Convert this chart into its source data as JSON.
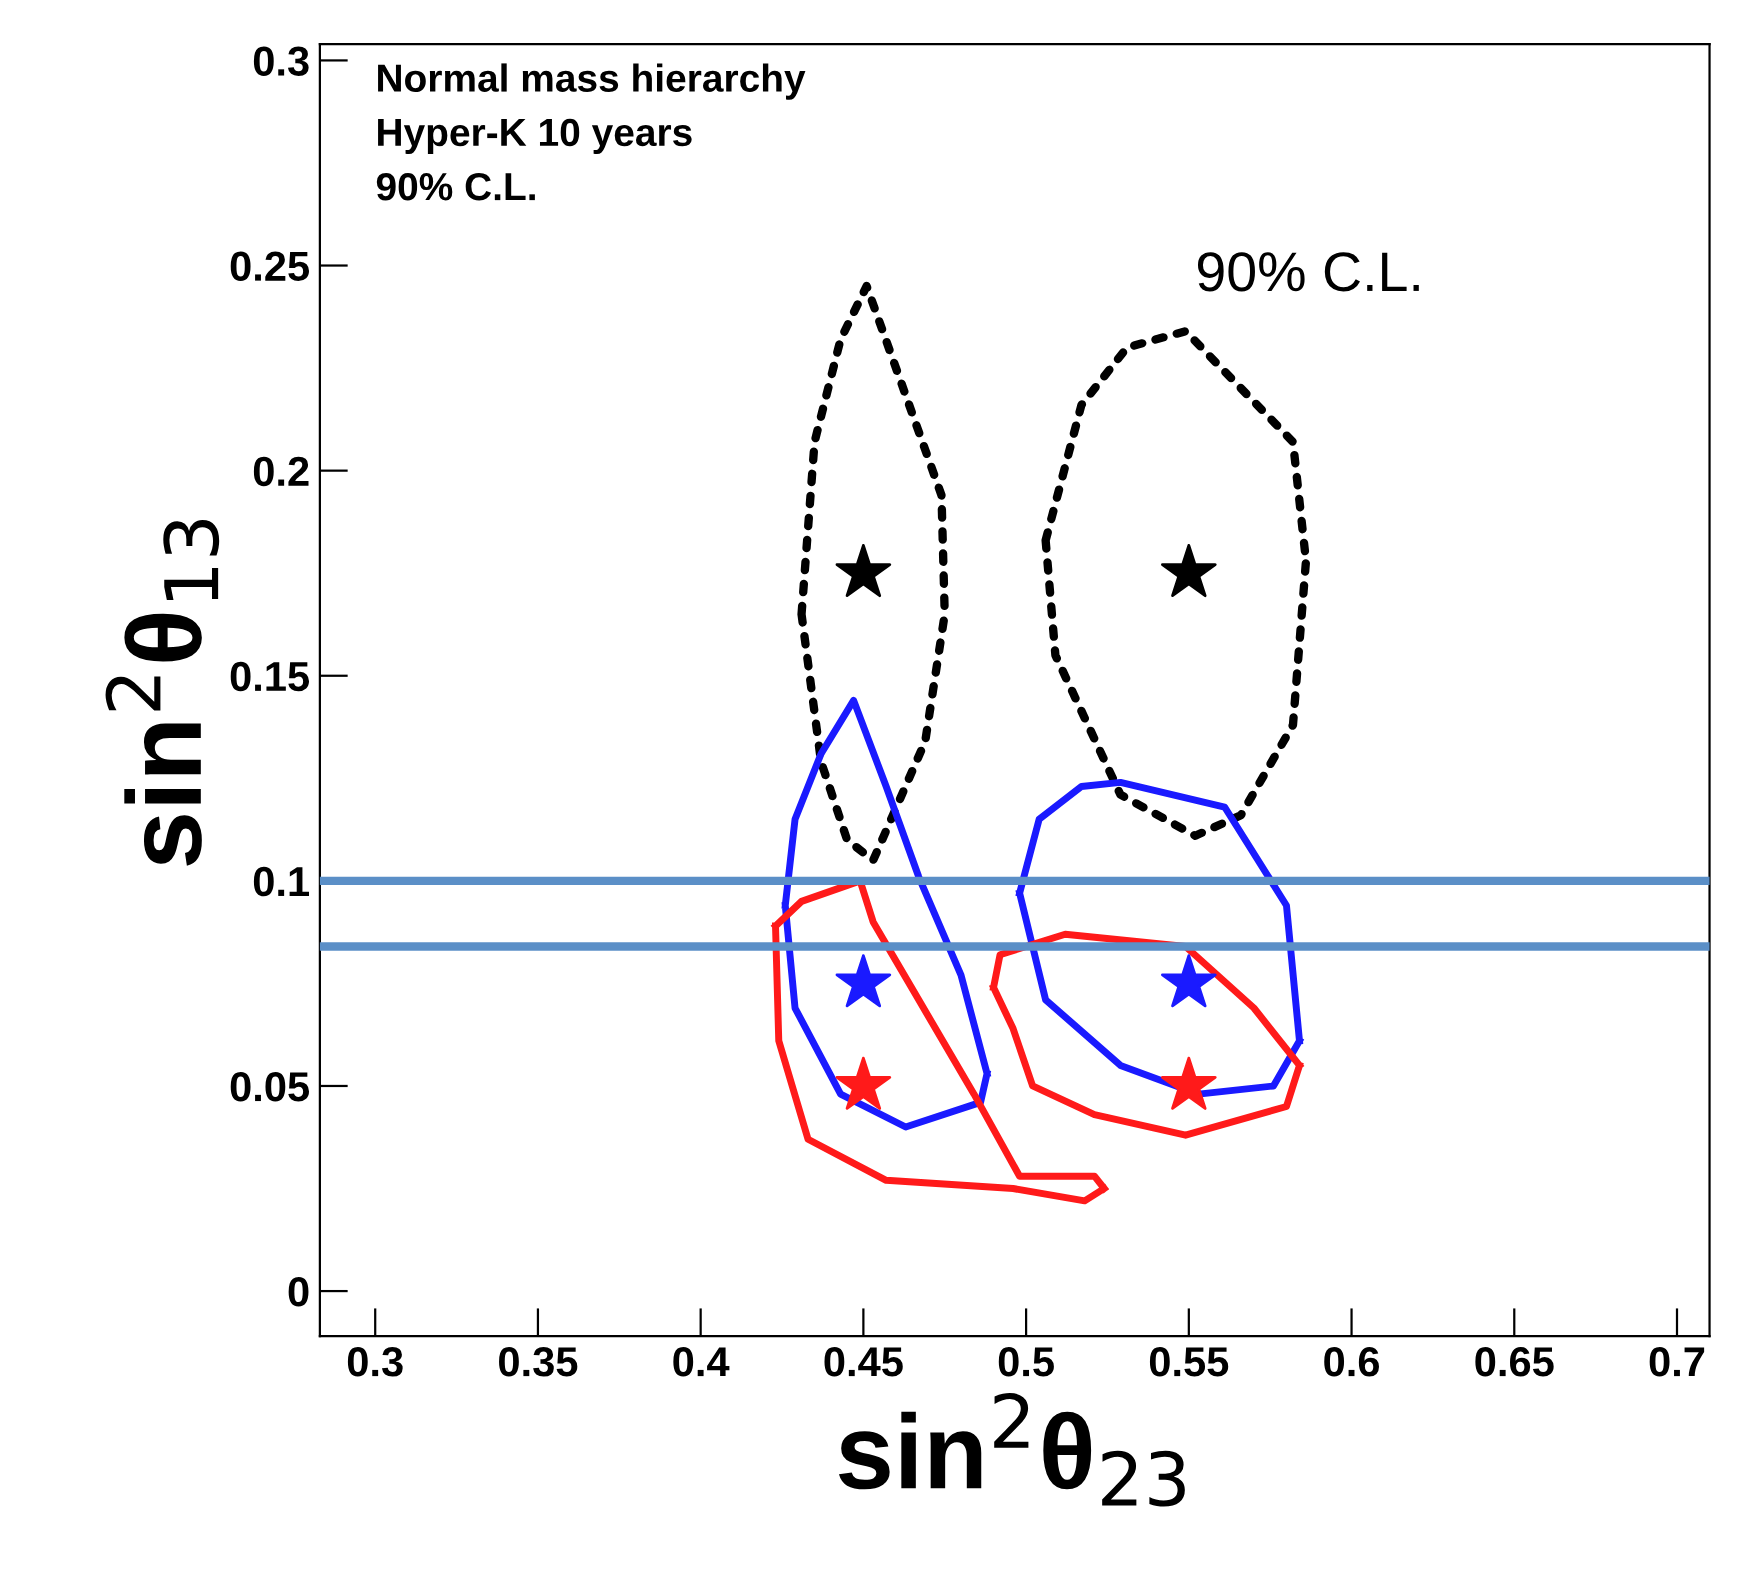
{
  "chart_data": {
    "type": "line",
    "xlabel": "sin$^{2}$θ$_{23}$",
    "ylabel": "sin$^{2}$θ$_{13}$",
    "xlim": [
      0.283,
      0.71
    ],
    "ylim": [
      -0.011,
      0.304
    ],
    "xticks": [
      0.3,
      0.35,
      0.4,
      0.45,
      0.5,
      0.55,
      0.6,
      0.65,
      0.7
    ],
    "yticks": [
      0,
      0.05,
      0.1,
      0.15,
      0.2,
      0.25,
      0.3
    ],
    "grid": false,
    "legend": false,
    "annotations": [
      "Normal mass hierarchy",
      "Hyper-K 10 years",
      "90% C.L.",
      "90% C.L."
    ],
    "ref_lines": [
      {
        "axis": "y",
        "value": 0.1,
        "color": "#5b8fc7",
        "line_style": "solid"
      },
      {
        "axis": "y",
        "value": 0.084,
        "color": "#5b8fc7",
        "line_style": "solid"
      }
    ],
    "series": [
      {
        "color": "#000000",
        "line_style": "dotted",
        "marker": "none",
        "x": [
          0.431,
          0.435,
          0.443,
          0.451,
          0.474,
          0.475,
          null,
          0.431,
          0.437,
          0.445,
          0.453,
          0.469,
          0.475
        ],
        "values": [
          0.165,
          0.207,
          0.232,
          0.245,
          0.194,
          0.165,
          null,
          0.165,
          0.129,
          0.11,
          0.105,
          0.134,
          0.165
        ]
      },
      {
        "color": "#000000",
        "line_style": "dotted",
        "marker": "none",
        "x": [
          0.506,
          0.517,
          0.531,
          0.549,
          0.582,
          0.586,
          null,
          0.506,
          0.509,
          0.529,
          0.552,
          0.566,
          0.582,
          0.586
        ],
        "values": [
          0.183,
          0.216,
          0.23,
          0.234,
          0.207,
          0.178,
          null,
          0.183,
          0.155,
          0.121,
          0.111,
          0.116,
          0.138,
          0.178
        ]
      },
      {
        "color": "#1a1aff",
        "line_style": "solid",
        "marker": "none",
        "x": [
          0.426,
          0.429,
          0.437,
          0.447,
          0.457,
          0.467,
          0.48,
          0.488,
          null,
          0.426,
          0.429,
          0.443,
          0.463,
          0.486,
          0.488
        ],
        "values": [
          0.094,
          0.115,
          0.131,
          0.144,
          0.123,
          0.101,
          0.077,
          0.053,
          null,
          0.094,
          0.069,
          0.048,
          0.04,
          0.046,
          0.053
        ]
      },
      {
        "color": "#1a1aff",
        "line_style": "solid",
        "marker": "none",
        "x": [
          0.498,
          0.504,
          0.517,
          0.529,
          0.561,
          0.58,
          0.584,
          null,
          0.498,
          0.506,
          0.529,
          0.553,
          0.576,
          0.584
        ],
        "values": [
          0.097,
          0.115,
          0.123,
          0.124,
          0.118,
          0.094,
          0.061,
          null,
          0.097,
          0.071,
          0.055,
          0.048,
          0.05,
          0.061
        ]
      },
      {
        "color": "#ff1a1a",
        "line_style": "solid",
        "marker": "none",
        "x": [
          0.423,
          0.431,
          0.449,
          0.453,
          0.467,
          0.484,
          0.498,
          0.521,
          0.524,
          null,
          0.423,
          0.424,
          0.433,
          0.457,
          0.496,
          0.518,
          0.524
        ],
        "values": [
          0.089,
          0.095,
          0.1,
          0.09,
          0.071,
          0.048,
          0.028,
          0.028,
          0.025,
          null,
          0.089,
          0.061,
          0.037,
          0.027,
          0.025,
          0.022,
          0.025
        ]
      },
      {
        "color": "#ff1a1a",
        "line_style": "solid",
        "marker": "none",
        "x": [
          0.49,
          0.492,
          0.512,
          0.549,
          0.57,
          0.584,
          null,
          0.49,
          0.496,
          0.502,
          0.521,
          0.549,
          0.58,
          0.584
        ],
        "values": [
          0.074,
          0.082,
          0.087,
          0.084,
          0.069,
          0.055,
          null,
          0.074,
          0.064,
          0.05,
          0.043,
          0.038,
          0.045,
          0.055
        ]
      },
      {
        "type": "scatter",
        "color": "#000000",
        "marker": "star",
        "x": [
          0.45,
          0.55
        ],
        "values": [
          0.175,
          0.175
        ]
      },
      {
        "type": "scatter",
        "color": "#1a1aff",
        "marker": "star",
        "x": [
          0.45,
          0.55
        ],
        "values": [
          0.075,
          0.075
        ]
      },
      {
        "type": "scatter",
        "color": "#ff1a1a",
        "marker": "star",
        "x": [
          0.45,
          0.55
        ],
        "values": [
          0.05,
          0.05
        ]
      }
    ]
  }
}
